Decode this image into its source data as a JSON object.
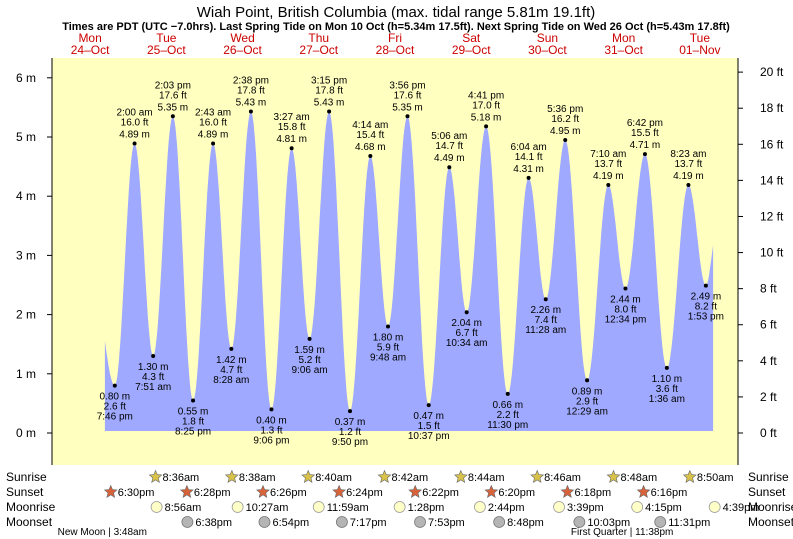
{
  "chart_data": {
    "type": "area",
    "title": "Wiah Point, British Columbia (max. tidal range 5.81m 19.1ft)",
    "subtitle": "Times are PDT (UTC −7.0hrs). Last Spring Tide on Mon 10 Oct (h=5.34m 17.5ft). Next Spring Tide on Wed 26 Oct (h=5.43m 17.8ft)",
    "days": [
      {
        "dow": "Mon",
        "date": "24–Oct"
      },
      {
        "dow": "Tue",
        "date": "25–Oct"
      },
      {
        "dow": "Wed",
        "date": "26–Oct"
      },
      {
        "dow": "Thu",
        "date": "27–Oct"
      },
      {
        "dow": "Fri",
        "date": "28–Oct"
      },
      {
        "dow": "Sat",
        "date": "29–Oct"
      },
      {
        "dow": "Sun",
        "date": "30–Oct"
      },
      {
        "dow": "Mon",
        "date": "31–Oct"
      },
      {
        "dow": "Tue",
        "date": "01–Nov"
      }
    ],
    "y_left": {
      "ticks": [
        0,
        1,
        2,
        3,
        4,
        5,
        6
      ],
      "labels": [
        "0 m",
        "1 m",
        "2 m",
        "3 m",
        "4 m",
        "5 m",
        "6 m"
      ],
      "range": [
        -0.3,
        6.3
      ]
    },
    "y_right": {
      "ticks": [
        0,
        2,
        4,
        6,
        8,
        10,
        12,
        14,
        16,
        18,
        20
      ],
      "labels": [
        "0 ft",
        "2 ft",
        "4 ft",
        "6 ft",
        "8 ft",
        "10 ft",
        "12 ft",
        "14 ft",
        "16 ft",
        "18 ft",
        "20 ft"
      ]
    },
    "x_range_days": [
      -0.5,
      8.5
    ],
    "nights": [
      {
        "from": 0.06,
        "to": 0.355
      },
      {
        "from": 1.057,
        "to": 1.357
      },
      {
        "from": 2.057,
        "to": 2.357
      },
      {
        "from": 3.051,
        "to": 3.351
      },
      {
        "from": 4.048,
        "to": 4.348
      },
      {
        "from": 5.043,
        "to": 5.348
      },
      {
        "from": 6.038,
        "to": 6.343
      },
      {
        "from": 7.035,
        "to": 7.343
      },
      {
        "from": 8.035,
        "to": 8.5
      }
    ],
    "tide_points": [
      {
        "day": 0,
        "time": "7:46 pm",
        "h_m": "0.80 m",
        "h_ft": "2.6 ft",
        "h": 0.8,
        "type": "low"
      },
      {
        "day": 1,
        "time": "2:00 am",
        "h_m": "4.89 m",
        "h_ft": "16.0 ft",
        "h": 4.89,
        "type": "high"
      },
      {
        "day": 1,
        "time": "7:51 am",
        "h_m": "1.30 m",
        "h_ft": "4.3 ft",
        "h": 1.3,
        "type": "low"
      },
      {
        "day": 1,
        "time": "2:03 pm",
        "h_m": "5.35 m",
        "h_ft": "17.6 ft",
        "h": 5.35,
        "type": "high"
      },
      {
        "day": 1,
        "time": "8:25 pm",
        "h_m": "0.55 m",
        "h_ft": "1.8 ft",
        "h": 0.55,
        "type": "low"
      },
      {
        "day": 2,
        "time": "2:43 am",
        "h_m": "4.89 m",
        "h_ft": "16.0 ft",
        "h": 4.89,
        "type": "high"
      },
      {
        "day": 2,
        "time": "8:28 am",
        "h_m": "1.42 m",
        "h_ft": "4.7 ft",
        "h": 1.42,
        "type": "low"
      },
      {
        "day": 2,
        "time": "2:38 pm",
        "h_m": "5.43 m",
        "h_ft": "17.8 ft",
        "h": 5.43,
        "type": "high"
      },
      {
        "day": 2,
        "time": "9:06 pm",
        "h_m": "0.40 m",
        "h_ft": "1.3 ft",
        "h": 0.4,
        "type": "low"
      },
      {
        "day": 3,
        "time": "3:27 am",
        "h_m": "4.81 m",
        "h_ft": "15.8 ft",
        "h": 4.81,
        "type": "high"
      },
      {
        "day": 3,
        "time": "9:06 am",
        "h_m": "1.59 m",
        "h_ft": "5.2 ft",
        "h": 1.59,
        "type": "low"
      },
      {
        "day": 3,
        "time": "3:15 pm",
        "h_m": "5.43 m",
        "h_ft": "17.8 ft",
        "h": 5.43,
        "type": "high"
      },
      {
        "day": 3,
        "time": "9:50 pm",
        "h_m": "0.37 m",
        "h_ft": "1.2 ft",
        "h": 0.37,
        "type": "low"
      },
      {
        "day": 4,
        "time": "4:14 am",
        "h_m": "4.68 m",
        "h_ft": "15.4 ft",
        "h": 4.68,
        "type": "high"
      },
      {
        "day": 4,
        "time": "9:48 am",
        "h_m": "1.80 m",
        "h_ft": "5.9 ft",
        "h": 1.8,
        "type": "low"
      },
      {
        "day": 4,
        "time": "3:56 pm",
        "h_m": "5.35 m",
        "h_ft": "17.6 ft",
        "h": 5.35,
        "type": "high"
      },
      {
        "day": 4,
        "time": "10:37 pm",
        "h_m": "0.47 m",
        "h_ft": "1.5 ft",
        "h": 0.47,
        "type": "low"
      },
      {
        "day": 5,
        "time": "5:06 am",
        "h_m": "4.49 m",
        "h_ft": "14.7 ft",
        "h": 4.49,
        "type": "high"
      },
      {
        "day": 5,
        "time": "10:34 am",
        "h_m": "2.04 m",
        "h_ft": "6.7 ft",
        "h": 2.04,
        "type": "low"
      },
      {
        "day": 5,
        "time": "4:41 pm",
        "h_m": "5.18 m",
        "h_ft": "17.0 ft",
        "h": 5.18,
        "type": "high"
      },
      {
        "day": 5,
        "time": "11:30 pm",
        "h_m": "0.66 m",
        "h_ft": "2.2 ft",
        "h": 0.66,
        "type": "low"
      },
      {
        "day": 6,
        "time": "6:04 am",
        "h_m": "4.31 m",
        "h_ft": "14.1 ft",
        "h": 4.31,
        "type": "high"
      },
      {
        "day": 6,
        "time": "11:28 am",
        "h_m": "2.26 m",
        "h_ft": "7.4 ft",
        "h": 2.26,
        "type": "low"
      },
      {
        "day": 6,
        "time": "5:36 pm",
        "h_m": "4.95 m",
        "h_ft": "16.2 ft",
        "h": 4.95,
        "type": "high"
      },
      {
        "day": 7,
        "time": "12:29 am",
        "h_m": "0.89 m",
        "h_ft": "2.9 ft",
        "h": 0.89,
        "type": "low"
      },
      {
        "day": 7,
        "time": "7:10 am",
        "h_m": "4.19 m",
        "h_ft": "13.7 ft",
        "h": 4.19,
        "type": "high"
      },
      {
        "day": 7,
        "time": "12:34 pm",
        "h_m": "2.44 m",
        "h_ft": "8.0 ft",
        "h": 2.44,
        "type": "low"
      },
      {
        "day": 7,
        "time": "6:42 pm",
        "h_m": "4.71 m",
        "h_ft": "15.5 ft",
        "h": 4.71,
        "type": "high"
      },
      {
        "day": 8,
        "time": "1:36 am",
        "h_m": "1.10 m",
        "h_ft": "3.6 ft",
        "h": 1.1,
        "type": "low"
      },
      {
        "day": 8,
        "time": "8:23 am",
        "h_m": "4.19 m",
        "h_ft": "13.7 ft",
        "h": 4.19,
        "type": "high"
      },
      {
        "day": 8,
        "time": "1:53 pm",
        "h_m": "2.49 m",
        "h_ft": "8.2 ft",
        "h": 2.49,
        "type": "low"
      }
    ],
    "legend_rows": [
      "Sunrise",
      "Sunset",
      "Moonrise",
      "Moonset"
    ],
    "sunrise": [
      {
        "day": 1,
        "time": "8:36am"
      },
      {
        "day": 2,
        "time": "8:38am"
      },
      {
        "day": 3,
        "time": "8:40am"
      },
      {
        "day": 4,
        "time": "8:42am"
      },
      {
        "day": 5,
        "time": "8:44am"
      },
      {
        "day": 6,
        "time": "8:46am"
      },
      {
        "day": 7,
        "time": "8:48am"
      },
      {
        "day": 8,
        "time": "8:50am"
      }
    ],
    "sunset": [
      {
        "day": 0,
        "time": "6:30pm"
      },
      {
        "day": 1,
        "time": "6:28pm"
      },
      {
        "day": 2,
        "time": "6:26pm"
      },
      {
        "day": 3,
        "time": "6:24pm"
      },
      {
        "day": 4,
        "time": "6:22pm"
      },
      {
        "day": 5,
        "time": "6:20pm"
      },
      {
        "day": 6,
        "time": "6:18pm"
      },
      {
        "day": 7,
        "time": "6:16pm"
      }
    ],
    "moonrise": [
      {
        "day": 1,
        "time": "8:56am"
      },
      {
        "day": 2,
        "time": "10:27am"
      },
      {
        "day": 3,
        "time": "11:59am"
      },
      {
        "day": 4,
        "time": "1:28pm"
      },
      {
        "day": 5,
        "time": "2:44pm"
      },
      {
        "day": 6,
        "time": "3:39pm"
      },
      {
        "day": 7,
        "time": "4:15pm"
      },
      {
        "day": 8,
        "time": "4:39pm"
      }
    ],
    "moonset": [
      {
        "day": 1,
        "time": "6:38pm"
      },
      {
        "day": 2,
        "time": "6:54pm"
      },
      {
        "day": 3,
        "time": "7:17pm"
      },
      {
        "day": 4,
        "time": "7:53pm"
      },
      {
        "day": 5,
        "time": "8:48pm"
      },
      {
        "day": 6,
        "time": "10:03pm"
      },
      {
        "day": 7,
        "time": "11:31pm"
      }
    ],
    "moon_phases": [
      {
        "label": "New Moon | 3:48am",
        "day": 0.16
      },
      {
        "label": "First Quarter | 11:38pm",
        "day": 6.98
      }
    ],
    "colors": {
      "day_bg": "#ffffc0",
      "night_bg": "#a6a6a6",
      "water": "#9fa9ff",
      "day_label": "#cc0000",
      "sunrise_star": "#d8c24a",
      "sunset_star": "#d8623a",
      "moon_disc": "#ffffc8",
      "moonset_disc": "#b5b5b5"
    }
  }
}
